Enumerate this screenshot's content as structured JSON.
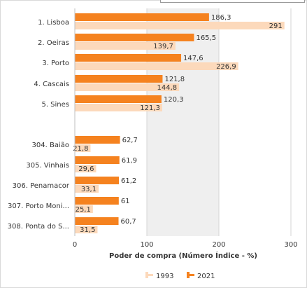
{
  "chart_data": {
    "type": "bar",
    "orientation": "horizontal",
    "xlabel": "Poder de compra (Número Índice - %)",
    "xlim": [
      0,
      300
    ],
    "xticks": [
      "0",
      "100",
      "200",
      "300"
    ],
    "grid": true,
    "legend_position": "bottom-center",
    "categories": [
      "1. Lisboa",
      "2. Oeiras",
      "3. Porto",
      "4. Cascais",
      "5. Sines",
      "304. Baião",
      "305. Vinhais",
      "306. Penamacor",
      "307. Porto Moni...",
      "308. Ponta do S..."
    ],
    "series": [
      {
        "name": "2021",
        "color": "#f5821f",
        "values": [
          186.3,
          165.5,
          147.6,
          121.8,
          120.3,
          62.7,
          61.9,
          61.2,
          61,
          60.7
        ],
        "labels": [
          "186,3",
          "165,5",
          "147,6",
          "121,8",
          "120,3",
          "62,7",
          "61,9",
          "61,2",
          "61",
          "60,7"
        ]
      },
      {
        "name": "1993",
        "color": "#fcd9bb",
        "values": [
          291,
          139.7,
          226.9,
          144.8,
          121.3,
          21.8,
          29.6,
          33.1,
          25.1,
          31.5
        ],
        "labels": [
          "291",
          "139,7",
          "226,9",
          "144,8",
          "121,3",
          "21,8",
          "29,6",
          "33,1",
          "25,1",
          "31,5"
        ]
      }
    ],
    "legend": [
      "1993",
      "2021"
    ]
  }
}
